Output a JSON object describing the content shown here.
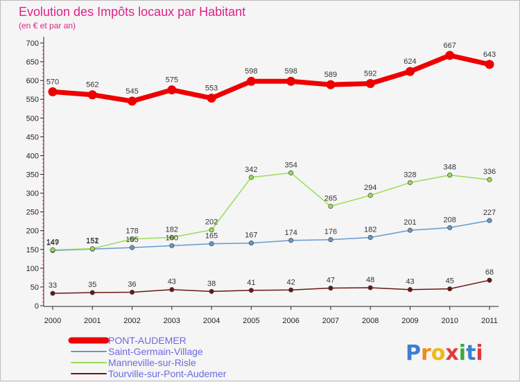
{
  "chart_data": {
    "type": "line",
    "title": "Evolution des Impôts locaux par Habitant",
    "subtitle": "(en € et par an)",
    "xlabel": "",
    "ylabel": "",
    "ylim": [
      0,
      700
    ],
    "yticks": [
      0,
      50,
      100,
      150,
      200,
      250,
      300,
      350,
      400,
      450,
      500,
      550,
      600,
      650,
      700
    ],
    "categories": [
      "2000",
      "2001",
      "2002",
      "2003",
      "2004",
      "2005",
      "2006",
      "2007",
      "2008",
      "2009",
      "2010",
      "2011"
    ],
    "grid": false,
    "legend_position": "bottom-left",
    "series": [
      {
        "name": "PONT-AUDEMER",
        "color": "#ee0000",
        "values": [
          570,
          562,
          545,
          575,
          553,
          598,
          598,
          589,
          592,
          624,
          667,
          643
        ]
      },
      {
        "name": "Saint-Germain-Village",
        "color": "#6699cc",
        "values": [
          147,
          151,
          155,
          160,
          165,
          167,
          174,
          176,
          182,
          201,
          208,
          227
        ]
      },
      {
        "name": "Manneville-sur-Risle",
        "color": "#99dd55",
        "values": [
          149,
          152,
          178,
          182,
          202,
          342,
          354,
          265,
          294,
          328,
          348,
          336
        ]
      },
      {
        "name": "Tourville-sur-Pont-Audemer",
        "color": "#6b1515",
        "values": [
          33,
          35,
          36,
          43,
          38,
          41,
          42,
          47,
          48,
          43,
          45,
          68
        ]
      }
    ]
  },
  "logo": {
    "text": "Proxiti"
  }
}
